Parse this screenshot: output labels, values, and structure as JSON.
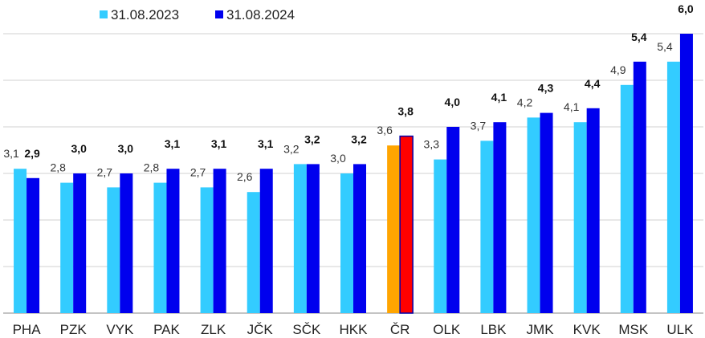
{
  "chart_data": {
    "type": "bar",
    "categories": [
      "PHA",
      "PZK",
      "VYK",
      "PAK",
      "ZLK",
      "JČK",
      "SČK",
      "HKK",
      "ČR",
      "OLK",
      "LBK",
      "JMK",
      "KVK",
      "MSK",
      "ULK"
    ],
    "series": [
      {
        "name": "31.08.2023",
        "values": [
          3.1,
          2.8,
          2.7,
          2.8,
          2.7,
          2.6,
          3.2,
          3.0,
          3.6,
          3.3,
          3.7,
          4.2,
          4.1,
          4.9,
          5.4
        ],
        "labels": [
          "3,1",
          "2,8",
          "2,7",
          "2,8",
          "2,7",
          "2,6",
          "3,2",
          "3,0",
          "3,6",
          "3,3",
          "3,7",
          "4,2",
          "4,1",
          "4,9",
          "5,4"
        ],
        "color": "#33ccff",
        "highlight_color": "#ffa500"
      },
      {
        "name": "31.08.2024",
        "values": [
          2.9,
          3.0,
          3.0,
          3.1,
          3.1,
          3.1,
          3.2,
          3.2,
          3.8,
          4.0,
          4.1,
          4.3,
          4.4,
          5.4,
          6.0
        ],
        "labels": [
          "2,9",
          "3,0",
          "3,0",
          "3,1",
          "3,1",
          "3,1",
          "3,2",
          "3,2",
          "3,8",
          "4,0",
          "4,1",
          "4,3",
          "4,4",
          "5,4",
          "6,0"
        ],
        "color": "#0000ee",
        "highlight_color": "#ff0000"
      }
    ],
    "highlight_category": "ČR",
    "ylim": [
      0,
      6
    ],
    "grid": true,
    "legend_position": "top-left",
    "title": "",
    "xlabel": "",
    "ylabel": ""
  }
}
